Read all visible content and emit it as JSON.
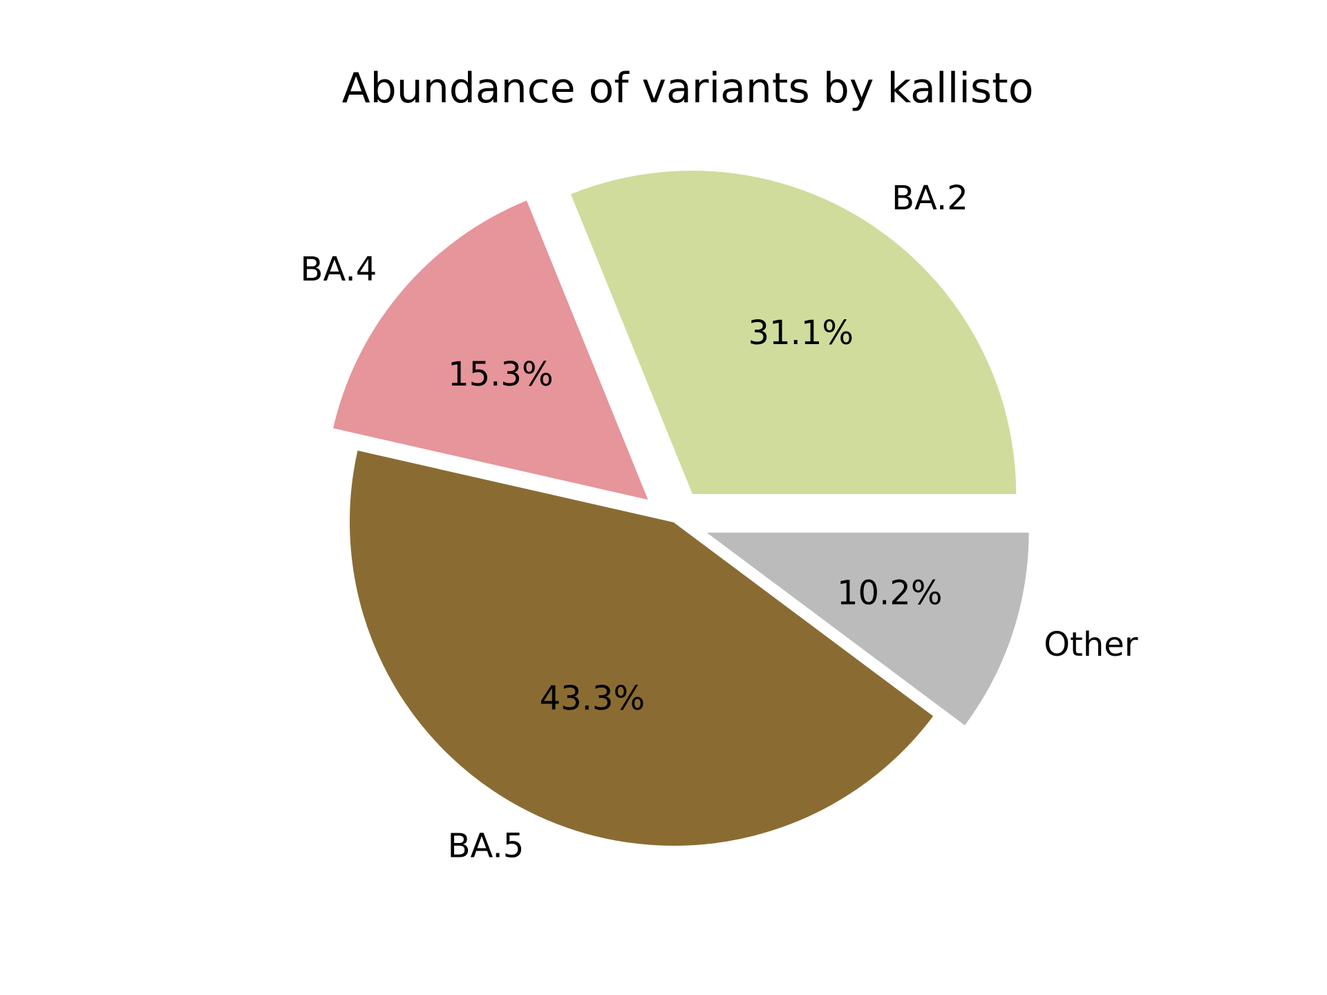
{
  "chart_data": {
    "type": "pie",
    "title": "Abundance of variants by kallisto",
    "slices": [
      {
        "label": "BA.2",
        "value": 31.1,
        "pct_label": "31.1%",
        "color": "#d0dc9c",
        "exploded": true
      },
      {
        "label": "BA.4",
        "value": 15.3,
        "pct_label": "15.3%",
        "color": "#e6959a",
        "exploded": true
      },
      {
        "label": "BA.5",
        "value": 43.3,
        "pct_label": "43.3%",
        "color": "#8a6c33",
        "exploded": false
      },
      {
        "label": "Other",
        "value": 10.2,
        "pct_label": "10.2%",
        "color": "#bbbbbb",
        "exploded": true
      }
    ],
    "start_angle_deg": 0,
    "direction": "counterclockwise",
    "legend": "none"
  }
}
